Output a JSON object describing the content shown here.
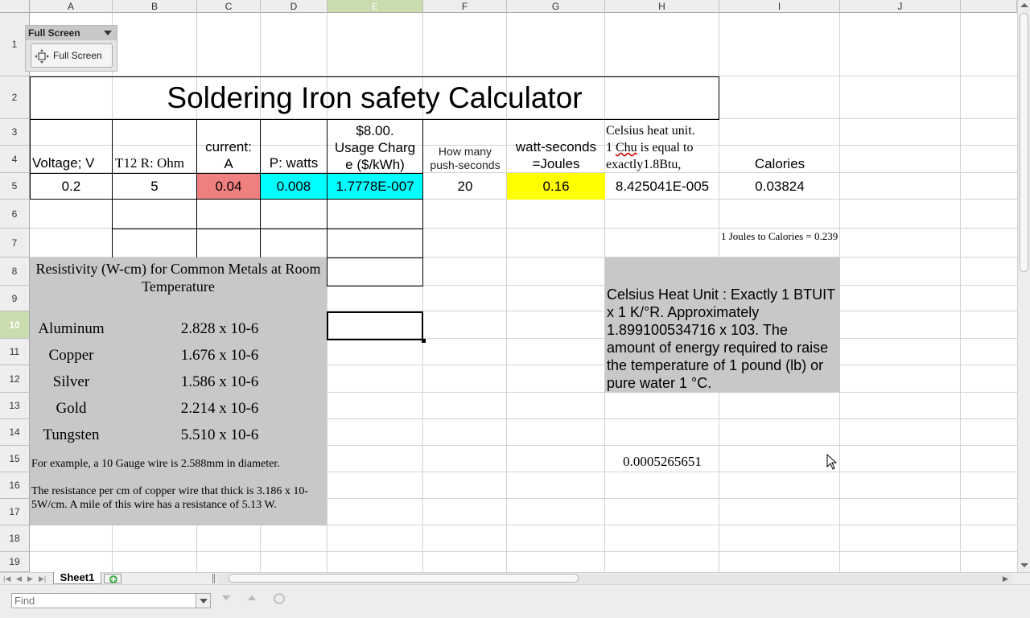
{
  "columns": [
    "A",
    "B",
    "C",
    "D",
    "E",
    "F",
    "G",
    "H",
    "I",
    "J"
  ],
  "rows": [
    "1",
    "2",
    "3",
    "4",
    "5",
    "6",
    "7",
    "8",
    "9",
    "10",
    "11",
    "12",
    "13",
    "14",
    "15",
    "16",
    "17",
    "18",
    "19"
  ],
  "selected": {
    "column": "E",
    "row": "10"
  },
  "fullscreen_toolbar": {
    "title": "Full Screen",
    "button_label": "Full Screen"
  },
  "title": "Soldering Iron safety Calculator",
  "headers": {
    "voltage": "Voltage; V",
    "resistance": "T12 R: Ohm",
    "current_line1": "current:",
    "current_line2": "A",
    "power": "P: watts",
    "usage_line1": "$8.00.",
    "usage_line2": "Usage Charg",
    "usage_line3": "e ($/kWh)",
    "push_line1": "How many",
    "push_line2": "push-seconds",
    "joules_line1": "watt-seconds",
    "joules_line2": "=Joules",
    "chu_line1": "Celsius heat unit.",
    "chu_line2_pre": "1 ",
    "chu_line2_word": "Chu",
    "chu_line2_post": " is equal to",
    "chu_line3": "exactly1.8Btu,",
    "calories": "Calories"
  },
  "values": {
    "voltage": "0.2",
    "resistance": "5",
    "current": "0.04",
    "power": "0.008",
    "usage": "1.7778E-007",
    "push_seconds": "20",
    "joules": "0.16",
    "chu": "8.425041E-005",
    "calories": "0.03824",
    "h15": "0.0005265651"
  },
  "conversion_note": "1 Joules to Calories = 0.239",
  "resistivity": {
    "title": "Resistivity (W-cm) for Common Metals at Room Temperature",
    "metals": [
      {
        "name": "Aluminum",
        "value": "2.828 x 10-6"
      },
      {
        "name": "Copper",
        "value": "1.676 x 10-6"
      },
      {
        "name": "Silver",
        "value": "1.586 x 10-6"
      },
      {
        "name": "Gold",
        "value": "2.214 x 10-6"
      },
      {
        "name": "Tungsten",
        "value": "5.510 x 10-6"
      }
    ],
    "example1": "For example, a 10 Gauge wire is 2.588mm in diameter.",
    "example2": "The resistance per cm of copper wire that thick is 3.186 x 10-5W/cm. A mile of this wire has a resistance of 5.13 W."
  },
  "chu_definition": "Celsius Heat Unit : Exactly 1 BTUIT x 1 K/°R. Approximately 1.899100534716 x 103. The amount of energy required to raise the temperature of 1 pound (lb) or pure water 1 °C.",
  "colors": {
    "current_bg": "#f08080",
    "power_bg": "#00ffff",
    "usage_bg": "#00ffff",
    "joules_bg": "#ffff00",
    "gray_block": "#c8c8c8"
  },
  "sheet_tab": "Sheet1",
  "find": {
    "placeholder": "Find"
  }
}
